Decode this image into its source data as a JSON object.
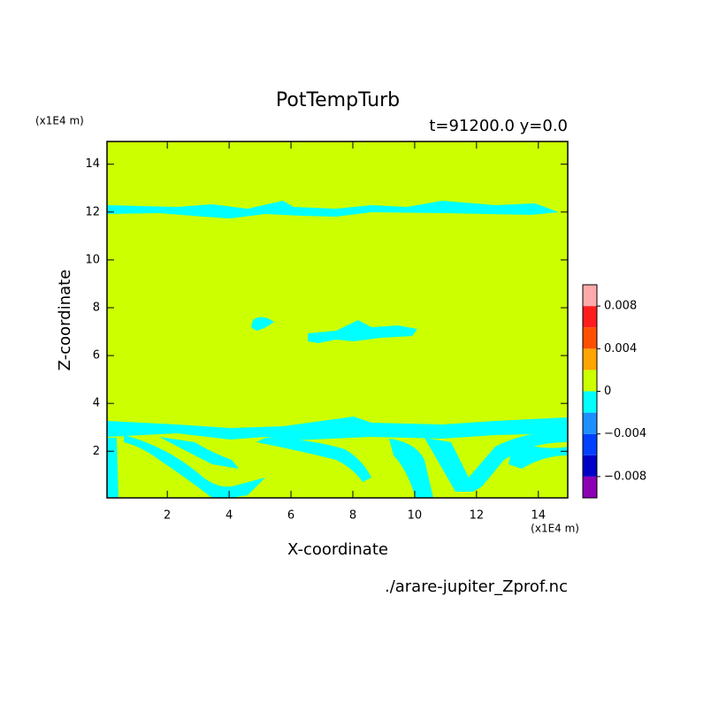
{
  "chart_data": {
    "type": "contour",
    "title": "PotTempTurb",
    "subtitle": "t=91200.0 y=0.0",
    "xlabel": "X-coordinate",
    "ylabel": "Z-coordinate",
    "xunit": "(x1E4 m)",
    "yunit": "(x1E4 m)",
    "footer": "./arare-jupiter_Zprof.nc",
    "xlim": [
      0.05,
      14.95
    ],
    "ylim": [
      0.05,
      14.95
    ],
    "xticks": [
      2,
      4,
      6,
      8,
      10,
      12,
      14
    ],
    "yticks": [
      2,
      4,
      6,
      8,
      10,
      12,
      14
    ],
    "colorbar": {
      "levels": [
        -0.01,
        -0.008,
        -0.006,
        -0.004,
        -0.002,
        0,
        0.002,
        0.004,
        0.006,
        0.008,
        0.01
      ],
      "colors": [
        "#8c00b4",
        "#0000c8",
        "#0040ff",
        "#1e90ff",
        "#00ffff",
        "#ccff00",
        "#ffa500",
        "#ff5000",
        "#ff1e1e",
        "#ffaaaa"
      ],
      "ticks": [
        0.008,
        0.004,
        0,
        {
          "value": -0.004,
          "label": "−0.004"
        },
        {
          "value": -0.008,
          "label": "−0.008"
        }
      ]
    }
  }
}
